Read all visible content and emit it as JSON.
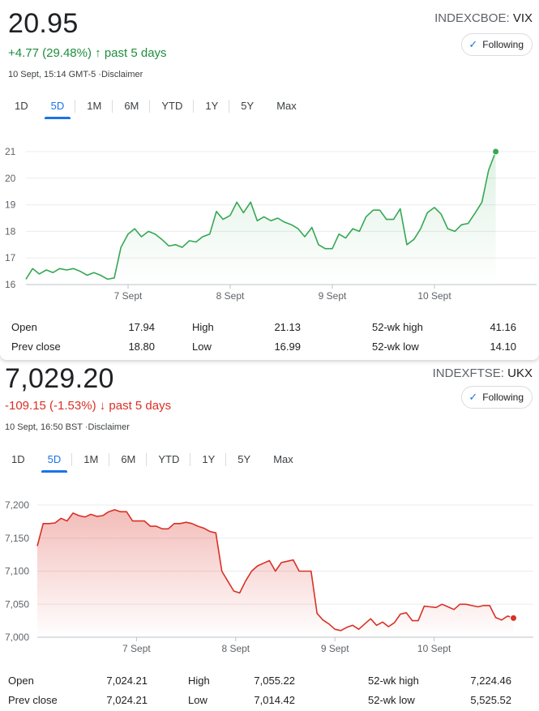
{
  "tabs": [
    "1D",
    "5D",
    "1M",
    "6M",
    "YTD",
    "1Y",
    "5Y",
    "Max"
  ],
  "active_tab": "5D",
  "follow_label": "Following",
  "stat_labels": {
    "open": "Open",
    "prev_close": "Prev close",
    "high": "High",
    "low": "Low",
    "wk_high": "52-wk high",
    "wk_low": "52-wk low"
  },
  "cards": [
    {
      "price": "20.95",
      "change": "+4.77 (29.48%)",
      "change_arrow": "↑",
      "period": "past 5 days",
      "timestamp": "10 Sept, 15:14 GMT-5 ·Disclaimer",
      "exchange": "INDEXCBOE:",
      "symbol": "VIX",
      "color": "#1e8e3e",
      "stats": {
        "open": "17.94",
        "prev_close": "18.80",
        "high": "21.13",
        "low": "16.99",
        "wk_high": "41.16",
        "wk_low": "14.10"
      }
    },
    {
      "price": "7,029.20",
      "change": "-109.15 (-1.53%)",
      "change_arrow": "↓",
      "period": "past 5 days",
      "timestamp": "10 Sept, 16:50 BST ·Disclaimer",
      "exchange": "INDEXFTSE:",
      "symbol": "UKX",
      "color": "#d93025",
      "stats": {
        "open": "7,024.21",
        "prev_close": "7,024.21",
        "high": "7,055.22",
        "low": "7,014.42",
        "wk_high": "7,224.46",
        "wk_low": "5,525.52"
      }
    }
  ],
  "chart_data": [
    {
      "type": "line",
      "series_color": "#34a853",
      "ylim": [
        16,
        21
      ],
      "yticks": [
        16,
        17,
        18,
        19,
        20,
        21
      ],
      "ytick_labels": [
        "16",
        "17",
        "18",
        "19",
        "20",
        "21"
      ],
      "xticks": [
        {
          "at": 20,
          "label": "7 Sept"
        },
        {
          "at": 40,
          "label": "8 Sept"
        },
        {
          "at": 60,
          "label": "9 Sept"
        },
        {
          "at": 80,
          "label": "10 Sept"
        }
      ],
      "x_range": [
        0,
        100
      ],
      "points": [
        [
          0,
          16.2
        ],
        [
          1.3,
          16.6
        ],
        [
          2.6,
          16.4
        ],
        [
          4,
          16.55
        ],
        [
          5.3,
          16.45
        ],
        [
          6.6,
          16.6
        ],
        [
          8,
          16.55
        ],
        [
          9.3,
          16.6
        ],
        [
          10.6,
          16.5
        ],
        [
          12,
          16.35
        ],
        [
          13.3,
          16.45
        ],
        [
          14.6,
          16.35
        ],
        [
          16,
          16.2
        ],
        [
          17.3,
          16.25
        ],
        [
          18.6,
          17.4
        ],
        [
          20,
          17.9
        ],
        [
          21.3,
          18.1
        ],
        [
          22.6,
          17.8
        ],
        [
          24,
          18.0
        ],
        [
          25.3,
          17.9
        ],
        [
          26.6,
          17.7
        ],
        [
          28,
          17.45
        ],
        [
          29.3,
          17.5
        ],
        [
          30.6,
          17.4
        ],
        [
          32,
          17.65
        ],
        [
          33.3,
          17.6
        ],
        [
          34.6,
          17.8
        ],
        [
          36,
          17.9
        ],
        [
          37.3,
          18.75
        ],
        [
          38.6,
          18.45
        ],
        [
          40,
          18.6
        ],
        [
          41.3,
          19.1
        ],
        [
          42.6,
          18.7
        ],
        [
          44,
          19.1
        ],
        [
          45.3,
          18.4
        ],
        [
          46.6,
          18.55
        ],
        [
          48,
          18.4
        ],
        [
          49.3,
          18.5
        ],
        [
          50.6,
          18.35
        ],
        [
          52,
          18.25
        ],
        [
          53.3,
          18.1
        ],
        [
          54.6,
          17.8
        ],
        [
          56,
          18.15
        ],
        [
          57.3,
          17.5
        ],
        [
          58.6,
          17.35
        ],
        [
          60,
          17.35
        ],
        [
          61.3,
          17.9
        ],
        [
          62.6,
          17.75
        ],
        [
          64,
          18.1
        ],
        [
          65.3,
          18.0
        ],
        [
          66.6,
          18.55
        ],
        [
          68,
          18.8
        ],
        [
          69.3,
          18.8
        ],
        [
          70.6,
          18.45
        ],
        [
          72,
          18.45
        ],
        [
          73.3,
          18.85
        ],
        [
          74.6,
          17.5
        ],
        [
          76,
          17.7
        ],
        [
          77.3,
          18.1
        ],
        [
          78.6,
          18.7
        ],
        [
          80,
          18.9
        ],
        [
          81.3,
          18.65
        ],
        [
          82.6,
          18.1
        ],
        [
          84,
          18.0
        ],
        [
          85.3,
          18.25
        ],
        [
          86.6,
          18.3
        ],
        [
          88,
          18.7
        ],
        [
          89.3,
          19.1
        ],
        [
          90.6,
          20.3
        ],
        [
          92,
          21.0
        ]
      ]
    },
    {
      "type": "area",
      "series_color": "#d93025",
      "ylim": [
        7000,
        7200
      ],
      "yticks": [
        7000,
        7050,
        7100,
        7150,
        7200
      ],
      "ytick_labels": [
        "7,000",
        "7,050",
        "7,100",
        "7,150",
        "7,200"
      ],
      "xticks": [
        {
          "at": 20,
          "label": "7 Sept"
        },
        {
          "at": 40,
          "label": "8 Sept"
        },
        {
          "at": 60,
          "label": "9 Sept"
        },
        {
          "at": 80,
          "label": "10 Sept"
        }
      ],
      "x_range": [
        0,
        100
      ],
      "points": [
        [
          0,
          7138
        ],
        [
          1.2,
          7172
        ],
        [
          2.4,
          7172
        ],
        [
          3.6,
          7173
        ],
        [
          4.8,
          7180
        ],
        [
          6,
          7176
        ],
        [
          7.2,
          7188
        ],
        [
          8.4,
          7184
        ],
        [
          9.6,
          7182
        ],
        [
          10.8,
          7186
        ],
        [
          12,
          7183
        ],
        [
          13.2,
          7184
        ],
        [
          14.4,
          7190
        ],
        [
          15.6,
          7193
        ],
        [
          16.8,
          7190
        ],
        [
          18,
          7190
        ],
        [
          19.2,
          7176
        ],
        [
          20.4,
          7176
        ],
        [
          21.6,
          7176
        ],
        [
          22.8,
          7168
        ],
        [
          24,
          7168
        ],
        [
          25.2,
          7164
        ],
        [
          26.4,
          7164
        ],
        [
          27.6,
          7172
        ],
        [
          28.8,
          7172
        ],
        [
          30,
          7174
        ],
        [
          31.2,
          7172
        ],
        [
          32.4,
          7168
        ],
        [
          33.6,
          7165
        ],
        [
          34.8,
          7160
        ],
        [
          36,
          7158
        ],
        [
          37.2,
          7100
        ],
        [
          38.4,
          7085
        ],
        [
          39.6,
          7070
        ],
        [
          40.8,
          7067
        ],
        [
          42,
          7085
        ],
        [
          43.2,
          7100
        ],
        [
          44.4,
          7108
        ],
        [
          45.6,
          7112
        ],
        [
          46.8,
          7116
        ],
        [
          48,
          7100
        ],
        [
          49.2,
          7113
        ],
        [
          50.4,
          7115
        ],
        [
          51.6,
          7117
        ],
        [
          52.8,
          7100
        ],
        [
          54,
          7100
        ],
        [
          55.2,
          7100
        ],
        [
          56.4,
          7036
        ],
        [
          57.6,
          7026
        ],
        [
          58.8,
          7020
        ],
        [
          60,
          7012
        ],
        [
          61.2,
          7010
        ],
        [
          62.4,
          7015
        ],
        [
          63.6,
          7018
        ],
        [
          64.8,
          7012
        ],
        [
          66,
          7020
        ],
        [
          67.2,
          7028
        ],
        [
          68.4,
          7018
        ],
        [
          69.6,
          7023
        ],
        [
          70.8,
          7016
        ],
        [
          72,
          7022
        ],
        [
          73.2,
          7035
        ],
        [
          74.4,
          7037
        ],
        [
          75.6,
          7025
        ],
        [
          76.8,
          7025
        ],
        [
          78,
          7047
        ],
        [
          79.2,
          7046
        ],
        [
          80.4,
          7045
        ],
        [
          81.6,
          7050
        ],
        [
          82.8,
          7046
        ],
        [
          84,
          7042
        ],
        [
          85.2,
          7050
        ],
        [
          86.4,
          7050
        ],
        [
          87.6,
          7048
        ],
        [
          88.8,
          7046
        ],
        [
          90,
          7048
        ],
        [
          91.2,
          7048
        ],
        [
          92.4,
          7030
        ],
        [
          93.6,
          7026
        ],
        [
          94.8,
          7032
        ],
        [
          96,
          7029
        ]
      ]
    }
  ]
}
